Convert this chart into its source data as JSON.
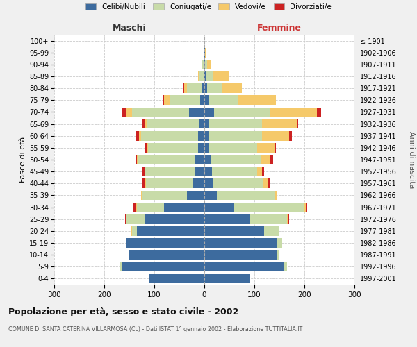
{
  "age_groups": [
    "0-4",
    "5-9",
    "10-14",
    "15-19",
    "20-24",
    "25-29",
    "30-34",
    "35-39",
    "40-44",
    "45-49",
    "50-54",
    "55-59",
    "60-64",
    "65-69",
    "70-74",
    "75-79",
    "80-84",
    "85-89",
    "90-94",
    "95-99",
    "100+"
  ],
  "birth_years": [
    "1997-2001",
    "1992-1996",
    "1987-1991",
    "1982-1986",
    "1977-1981",
    "1972-1976",
    "1967-1971",
    "1962-1966",
    "1957-1961",
    "1952-1956",
    "1947-1951",
    "1942-1946",
    "1937-1941",
    "1932-1936",
    "1927-1931",
    "1922-1926",
    "1917-1921",
    "1912-1916",
    "1907-1911",
    "1902-1906",
    "≤ 1901"
  ],
  "male": {
    "celibi": [
      110,
      165,
      150,
      155,
      135,
      120,
      80,
      35,
      22,
      18,
      18,
      12,
      12,
      10,
      30,
      8,
      5,
      2,
      1,
      0,
      0
    ],
    "coniugati": [
      0,
      5,
      0,
      0,
      10,
      35,
      55,
      90,
      95,
      100,
      115,
      100,
      115,
      105,
      115,
      60,
      30,
      8,
      3,
      0,
      0
    ],
    "vedovi": [
      0,
      0,
      0,
      0,
      2,
      2,
      2,
      2,
      2,
      2,
      2,
      2,
      4,
      5,
      12,
      12,
      5,
      3,
      0,
      0,
      0
    ],
    "divorziati": [
      0,
      0,
      0,
      0,
      0,
      2,
      4,
      0,
      6,
      3,
      3,
      5,
      7,
      3,
      8,
      2,
      2,
      0,
      0,
      0,
      0
    ]
  },
  "female": {
    "nubili": [
      90,
      160,
      145,
      145,
      120,
      90,
      60,
      25,
      18,
      15,
      12,
      10,
      10,
      10,
      20,
      8,
      5,
      3,
      1,
      1,
      0
    ],
    "coniugate": [
      0,
      5,
      5,
      10,
      30,
      75,
      140,
      115,
      100,
      90,
      100,
      95,
      105,
      105,
      110,
      60,
      30,
      15,
      5,
      1,
      0
    ],
    "vedove": [
      0,
      0,
      0,
      0,
      0,
      2,
      3,
      4,
      8,
      10,
      20,
      35,
      55,
      70,
      95,
      75,
      40,
      30,
      8,
      2,
      0
    ],
    "divorziate": [
      0,
      0,
      0,
      0,
      0,
      2,
      3,
      2,
      6,
      5,
      5,
      3,
      5,
      3,
      8,
      0,
      0,
      0,
      0,
      0,
      0
    ]
  },
  "colors": {
    "celibi": "#3d6b9e",
    "coniugati": "#c8dba8",
    "vedovi": "#f5c96a",
    "divorziati": "#cc2222"
  },
  "xlim": 300,
  "title": "Popolazione per età, sesso e stato civile - 2002",
  "subtitle": "COMUNE DI SANTA CATERINA VILLARMOSA (CL) - Dati ISTAT 1° gennaio 2002 - Elaborazione TUTTITALIA.IT",
  "ylabel_left": "Fasce di età",
  "ylabel_right": "Anni di nascita",
  "xlabel_male": "Maschi",
  "xlabel_female": "Femmine",
  "legend_labels": [
    "Celibi/Nubili",
    "Coniugati/e",
    "Vedovi/e",
    "Divorziati/e"
  ],
  "bg_color": "#f0f0f0",
  "plot_bg_color": "#ffffff"
}
